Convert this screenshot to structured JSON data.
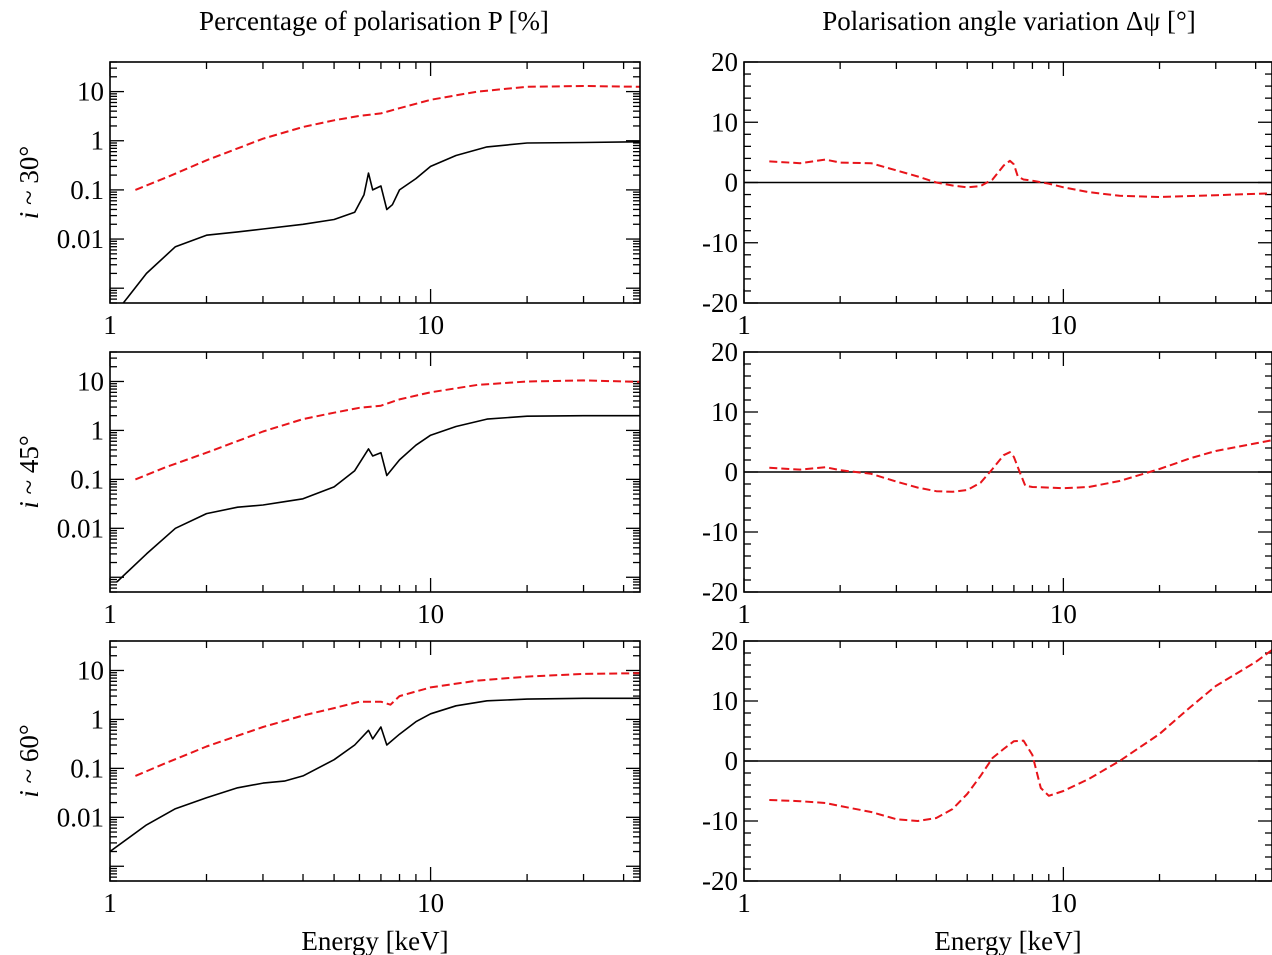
{
  "figure": {
    "left_title": "Percentage of polarisation P [%]",
    "right_title": "Polarisation angle variation Δψ [°]",
    "xlabel": "Energy [keV]"
  },
  "colors": {
    "axes": "#000000",
    "solid": "#000000",
    "dashed": "#e8141a"
  },
  "chart_data": [
    {
      "type": "line",
      "panel": "P",
      "row_label": "i ~ 30°",
      "xscale": "log",
      "yscale": "log",
      "xlim": [
        1,
        45
      ],
      "ylim": [
        0.0005,
        40
      ],
      "x_ticks": [
        "1",
        "10"
      ],
      "y_ticks": [
        "0.01",
        "0.1",
        "1",
        "10"
      ],
      "xlabel": "",
      "series": [
        {
          "style": "dashed",
          "x": [
            1.2,
            1.5,
            2,
            3,
            4,
            5,
            6,
            7,
            8,
            10,
            14,
            20,
            30,
            45
          ],
          "y": [
            0.1,
            0.18,
            0.4,
            1.1,
            1.9,
            2.6,
            3.2,
            3.6,
            4.6,
            6.8,
            10,
            12.5,
            13,
            12.5
          ]
        },
        {
          "style": "solid",
          "x": [
            1.1,
            1.3,
            1.6,
            2,
            2.5,
            3,
            4,
            5,
            5.8,
            6.2,
            6.4,
            6.6,
            7,
            7.3,
            7.6,
            8,
            9,
            10,
            12,
            15,
            20,
            30,
            45
          ],
          "y": [
            0.0005,
            0.002,
            0.007,
            0.012,
            0.014,
            0.016,
            0.02,
            0.025,
            0.035,
            0.08,
            0.22,
            0.1,
            0.12,
            0.04,
            0.05,
            0.1,
            0.17,
            0.3,
            0.5,
            0.75,
            0.9,
            0.92,
            0.95
          ]
        }
      ]
    },
    {
      "type": "line",
      "panel": "P",
      "row_label": "i ~ 45°",
      "xscale": "log",
      "yscale": "log",
      "xlim": [
        1,
        45
      ],
      "ylim": [
        0.0005,
        40
      ],
      "x_ticks": [
        "1",
        "10"
      ],
      "y_ticks": [
        "0.01",
        "0.1",
        "1",
        "10"
      ],
      "xlabel": "",
      "series": [
        {
          "style": "dashed",
          "x": [
            1.2,
            1.5,
            2,
            3,
            4,
            5,
            6,
            7,
            8,
            10,
            14,
            20,
            30,
            45
          ],
          "y": [
            0.1,
            0.18,
            0.35,
            0.95,
            1.7,
            2.3,
            2.9,
            3.2,
            4.3,
            6,
            8.5,
            10,
            10.5,
            9.8
          ]
        },
        {
          "style": "solid",
          "x": [
            1.05,
            1.3,
            1.6,
            2,
            2.5,
            3,
            3.5,
            4,
            5,
            5.8,
            6.4,
            6.6,
            7,
            7.3,
            8,
            9,
            10,
            12,
            15,
            20,
            30,
            45
          ],
          "y": [
            0.0008,
            0.003,
            0.01,
            0.02,
            0.027,
            0.03,
            0.035,
            0.04,
            0.07,
            0.15,
            0.42,
            0.3,
            0.35,
            0.12,
            0.25,
            0.5,
            0.8,
            1.2,
            1.7,
            1.95,
            2,
            2
          ]
        }
      ]
    },
    {
      "type": "line",
      "panel": "P",
      "row_label": "i ~ 60°",
      "xscale": "log",
      "yscale": "log",
      "xlim": [
        1,
        45
      ],
      "ylim": [
        0.0005,
        40
      ],
      "x_ticks": [
        "1",
        "10"
      ],
      "y_ticks": [
        "0.01",
        "0.1",
        "1",
        "10"
      ],
      "xlabel": "Energy [keV]",
      "series": [
        {
          "style": "dashed",
          "x": [
            1.2,
            1.5,
            2,
            3,
            4,
            5,
            6,
            7,
            7.5,
            8,
            10,
            14,
            20,
            30,
            45
          ],
          "y": [
            0.07,
            0.13,
            0.28,
            0.7,
            1.2,
            1.7,
            2.3,
            2.3,
            2,
            3,
            4.5,
            6.2,
            7.5,
            8.5,
            8.8
          ]
        },
        {
          "style": "solid",
          "x": [
            1,
            1.3,
            1.6,
            2,
            2.5,
            3,
            3.5,
            4,
            5,
            5.8,
            6.4,
            6.6,
            7,
            7.3,
            8,
            9,
            10,
            12,
            15,
            20,
            30,
            45
          ],
          "y": [
            0.002,
            0.007,
            0.015,
            0.025,
            0.04,
            0.05,
            0.055,
            0.07,
            0.15,
            0.3,
            0.6,
            0.4,
            0.7,
            0.3,
            0.5,
            0.9,
            1.3,
            1.9,
            2.4,
            2.6,
            2.7,
            2.7
          ]
        }
      ]
    },
    {
      "type": "line",
      "panel": "Δψ",
      "row_label": "",
      "xscale": "log",
      "yscale": "linear",
      "xlim": [
        1,
        45
      ],
      "ylim": [
        -20,
        20
      ],
      "x_ticks": [
        "1",
        "10"
      ],
      "y_ticks": [
        "-20",
        "-10",
        "0",
        "10",
        "20"
      ],
      "xlabel": "",
      "series": [
        {
          "style": "solid",
          "x": [
            1,
            45
          ],
          "y": [
            0,
            0
          ]
        },
        {
          "style": "dashed",
          "x": [
            1.2,
            1.5,
            1.8,
            2,
            2.5,
            3,
            3.5,
            4,
            4.5,
            5,
            5.5,
            6,
            6.5,
            6.8,
            7,
            7.2,
            7.5,
            8,
            9,
            10,
            12,
            15,
            20,
            30,
            45
          ],
          "y": [
            3.5,
            3.2,
            3.8,
            3.3,
            3.2,
            2,
            1,
            0,
            -0.5,
            -0.8,
            -0.6,
            0.5,
            2.8,
            3.6,
            3,
            1,
            0.5,
            0.3,
            -0.2,
            -0.8,
            -1.6,
            -2.2,
            -2.4,
            -2.1,
            -1.8
          ]
        }
      ]
    },
    {
      "type": "line",
      "panel": "Δψ",
      "row_label": "",
      "xscale": "log",
      "yscale": "linear",
      "xlim": [
        1,
        45
      ],
      "ylim": [
        -20,
        20
      ],
      "x_ticks": [
        "1",
        "10"
      ],
      "y_ticks": [
        "-20",
        "-10",
        "0",
        "10",
        "20"
      ],
      "xlabel": "",
      "series": [
        {
          "style": "solid",
          "x": [
            1,
            45
          ],
          "y": [
            0,
            0
          ]
        },
        {
          "style": "dashed",
          "x": [
            1.2,
            1.5,
            1.8,
            2,
            2.5,
            3,
            3.5,
            4,
            4.5,
            5,
            5.5,
            6,
            6.5,
            6.8,
            7,
            7.3,
            7.6,
            8,
            9,
            10,
            12,
            15,
            20,
            25,
            30,
            45
          ],
          "y": [
            0.7,
            0.4,
            0.8,
            0.3,
            -0.3,
            -1.6,
            -2.6,
            -3.2,
            -3.3,
            -3,
            -1.8,
            0.5,
            2.8,
            3.3,
            2.5,
            0,
            -2.3,
            -2.5,
            -2.6,
            -2.7,
            -2.5,
            -1.5,
            0.5,
            2.3,
            3.5,
            5.3
          ]
        }
      ]
    },
    {
      "type": "line",
      "panel": "Δψ",
      "row_label": "",
      "xscale": "log",
      "yscale": "linear",
      "xlim": [
        1,
        45
      ],
      "ylim": [
        -20,
        20
      ],
      "x_ticks": [
        "1",
        "10"
      ],
      "y_ticks": [
        "-20",
        "-10",
        "0",
        "10",
        "20"
      ],
      "xlabel": "Energy [keV]",
      "series": [
        {
          "style": "solid",
          "x": [
            1,
            45
          ],
          "y": [
            0,
            0
          ]
        },
        {
          "style": "dashed",
          "x": [
            1.2,
            1.5,
            1.8,
            2,
            2.5,
            3,
            3.5,
            4,
            4.5,
            5,
            5.5,
            6,
            6.5,
            7,
            7.5,
            8,
            8.5,
            9,
            10,
            12,
            15,
            20,
            25,
            30,
            40,
            45
          ],
          "y": [
            -6.5,
            -6.7,
            -7,
            -7.5,
            -8.5,
            -9.7,
            -10,
            -9.5,
            -8,
            -5.5,
            -2.5,
            0.5,
            2,
            3.3,
            3.4,
            1,
            -4.5,
            -5.8,
            -5,
            -3,
            0,
            4.5,
            9,
            12.5,
            16.5,
            18.5
          ]
        }
      ]
    }
  ]
}
